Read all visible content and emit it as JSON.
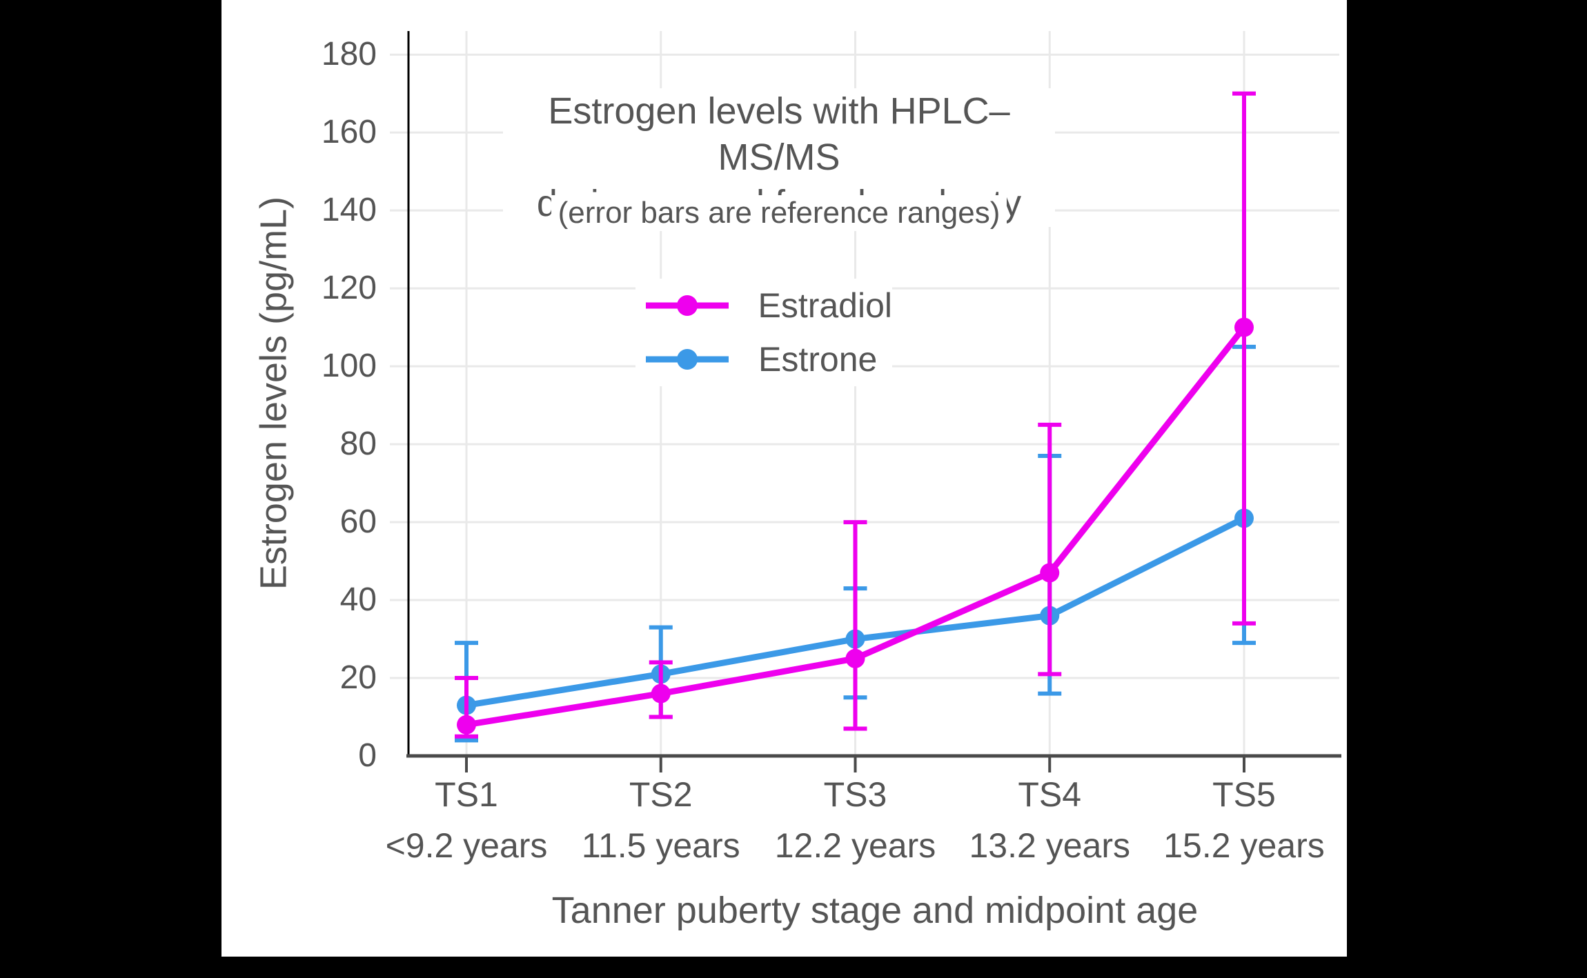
{
  "frame": {
    "background": "#000000",
    "panel_background": "#ffffff"
  },
  "title": {
    "line1": "Estrogen levels with HPLC–MS/MS",
    "line2": "during normal female puberty",
    "subtitle": "(error bars are reference ranges)"
  },
  "y_axis": {
    "title": "Estrogen levels (pg/mL)",
    "ticks": [
      0,
      20,
      40,
      60,
      80,
      100,
      120,
      140,
      160,
      180
    ]
  },
  "x_axis": {
    "title": "Tanner puberty stage and midpoint age"
  },
  "colors": {
    "estradiol": "#EE00EE",
    "estrone": "#3B99E7",
    "gridline": "#E9E9E9",
    "axis_line_y": "#000000",
    "axis_line_x": "#4a4a4a",
    "text": "#555555"
  },
  "chart_data": {
    "type": "line",
    "title": "Estrogen levels with HPLC–MS/MS during normal female puberty",
    "subtitle": "(error bars are reference ranges)",
    "xlabel": "Tanner puberty stage and midpoint age",
    "ylabel": "Estrogen levels (pg/mL)",
    "ylim": [
      0,
      186
    ],
    "grid": true,
    "legend_position": "inside-top-center",
    "error_bar_meaning": "reference ranges",
    "categories": [
      {
        "stage": "TS1",
        "age": "<9.2 years"
      },
      {
        "stage": "TS2",
        "age": "11.5 years"
      },
      {
        "stage": "TS3",
        "age": "12.2 years"
      },
      {
        "stage": "TS4",
        "age": "13.2 years"
      },
      {
        "stage": "TS5",
        "age": "15.2 years"
      }
    ],
    "series": [
      {
        "name": "Estradiol",
        "color": "#EE00EE",
        "values": [
          8,
          16,
          25,
          47,
          110
        ],
        "error_low": [
          5,
          10,
          7,
          21,
          34
        ],
        "error_high": [
          20,
          24,
          60,
          85,
          170
        ]
      },
      {
        "name": "Estrone",
        "color": "#3B99E7",
        "values": [
          13,
          21,
          30,
          36,
          61
        ],
        "error_low": [
          4,
          10,
          15,
          16,
          29
        ],
        "error_high": [
          29,
          33,
          43,
          77,
          105
        ]
      }
    ],
    "draw_order_note": "Estrone drawn first, Estradiol on top"
  }
}
